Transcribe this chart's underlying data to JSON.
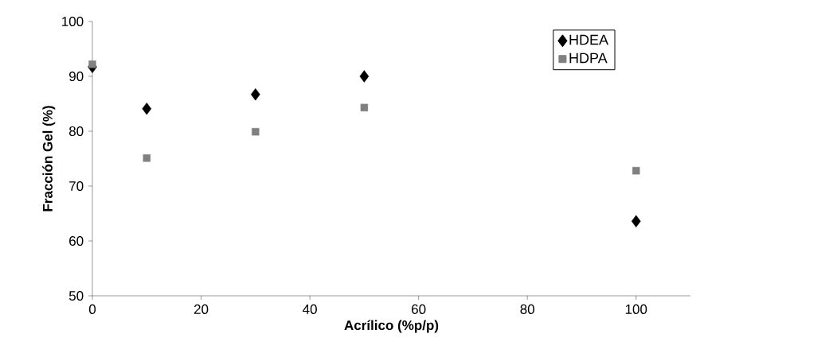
{
  "chart_data": {
    "type": "scatter",
    "xlabel": "Acrílico  (%p/p)",
    "ylabel": "Fracción Gel (%)",
    "x": [
      0,
      10,
      30,
      50,
      100
    ],
    "series": [
      {
        "name": "HDEA",
        "color": "#000000",
        "marker": "diamond",
        "values": [
          91.7,
          84.1,
          86.7,
          90.0,
          63.6
        ]
      },
      {
        "name": "HDPA",
        "color": "#808080",
        "marker": "square",
        "values": [
          92.2,
          75.1,
          79.9,
          84.3,
          72.8
        ]
      }
    ],
    "xlim": [
      0,
      110
    ],
    "xticks": [
      0,
      20,
      40,
      60,
      80,
      100
    ],
    "ylim": [
      50,
      100
    ],
    "yticks": [
      50,
      60,
      70,
      80,
      90,
      100
    ],
    "grid": false,
    "legend": "top right"
  }
}
